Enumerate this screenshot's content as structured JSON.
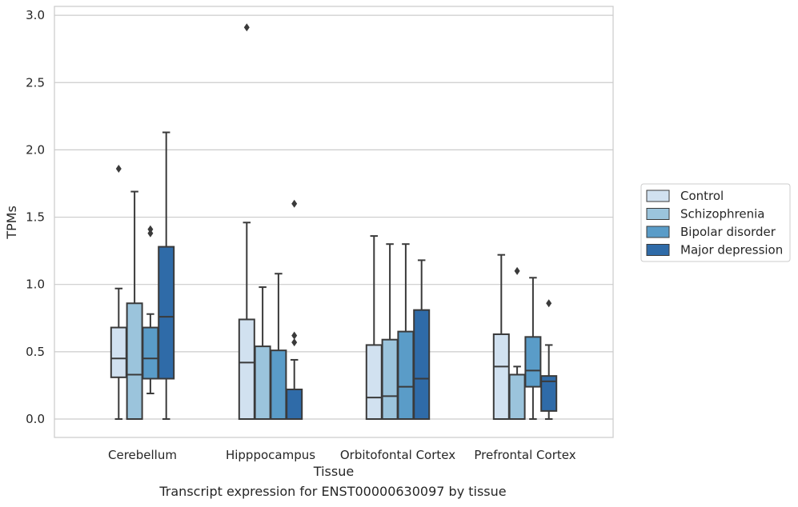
{
  "caption": "Transcript expression for ENST00000630097 by tissue",
  "chart_data": {
    "type": "box",
    "xlabel": "Tissue",
    "ylabel": "TPMs",
    "ylim": [
      -0.14,
      3.07
    ],
    "yticks": [
      "0.0",
      "0.5",
      "1.0",
      "1.5",
      "2.0",
      "2.5",
      "3.0"
    ],
    "grid": "horizontal",
    "legend_position": "right",
    "categories": [
      "Cerebellum",
      "Hipppocampus",
      "Orbitofontal Cortex",
      "Prefrontal Cortex"
    ],
    "series": [
      {
        "name": "Control",
        "color": "#d1e1f0",
        "boxes": [
          {
            "whisker_low": 0.0,
            "q1": 0.31,
            "median": 0.45,
            "q3": 0.68,
            "whisker_high": 0.97,
            "outliers": [
              1.86
            ]
          },
          {
            "whisker_low": 0.0,
            "q1": 0.0,
            "median": 0.42,
            "q3": 0.74,
            "whisker_high": 1.46,
            "outliers": [
              2.91
            ]
          },
          {
            "whisker_low": 0.0,
            "q1": 0.0,
            "median": 0.16,
            "q3": 0.55,
            "whisker_high": 1.36,
            "outliers": []
          },
          {
            "whisker_low": 0.0,
            "q1": 0.0,
            "median": 0.39,
            "q3": 0.63,
            "whisker_high": 1.22,
            "outliers": []
          }
        ]
      },
      {
        "name": "Schizophrenia",
        "color": "#9bc4dc",
        "boxes": [
          {
            "whisker_low": 0.0,
            "q1": 0.0,
            "median": 0.33,
            "q3": 0.86,
            "whisker_high": 1.69,
            "outliers": []
          },
          {
            "whisker_low": 0.0,
            "q1": 0.0,
            "median": 0.0,
            "q3": 0.54,
            "whisker_high": 0.98,
            "outliers": []
          },
          {
            "whisker_low": 0.0,
            "q1": 0.0,
            "median": 0.17,
            "q3": 0.59,
            "whisker_high": 1.3,
            "outliers": []
          },
          {
            "whisker_low": 0.0,
            "q1": 0.0,
            "median": 0.33,
            "q3": 0.33,
            "whisker_high": 0.39,
            "outliers": [
              1.1
            ]
          }
        ]
      },
      {
        "name": "Bipolar disorder",
        "color": "#5a9cc8",
        "boxes": [
          {
            "whisker_low": 0.19,
            "q1": 0.3,
            "median": 0.45,
            "q3": 0.68,
            "whisker_high": 0.78,
            "outliers": [
              1.38,
              1.41
            ]
          },
          {
            "whisker_low": 0.0,
            "q1": 0.0,
            "median": 0.0,
            "q3": 0.51,
            "whisker_high": 1.08,
            "outliers": []
          },
          {
            "whisker_low": 0.0,
            "q1": 0.0,
            "median": 0.24,
            "q3": 0.65,
            "whisker_high": 1.3,
            "outliers": []
          },
          {
            "whisker_low": 0.0,
            "q1": 0.24,
            "median": 0.36,
            "q3": 0.61,
            "whisker_high": 1.05,
            "outliers": []
          }
        ]
      },
      {
        "name": "Major depression",
        "color": "#2f6ba8",
        "boxes": [
          {
            "whisker_low": 0.0,
            "q1": 0.3,
            "median": 0.76,
            "q3": 1.28,
            "whisker_high": 2.13,
            "outliers": []
          },
          {
            "whisker_low": 0.0,
            "q1": 0.0,
            "median": 0.0,
            "q3": 0.22,
            "whisker_high": 0.44,
            "outliers": [
              0.57,
              0.62,
              1.6
            ]
          },
          {
            "whisker_low": 0.0,
            "q1": 0.0,
            "median": 0.3,
            "q3": 0.81,
            "whisker_high": 1.18,
            "outliers": []
          },
          {
            "whisker_low": 0.0,
            "q1": 0.06,
            "median": 0.28,
            "q3": 0.32,
            "whisker_high": 0.55,
            "outliers": [
              0.86
            ]
          }
        ]
      }
    ]
  }
}
